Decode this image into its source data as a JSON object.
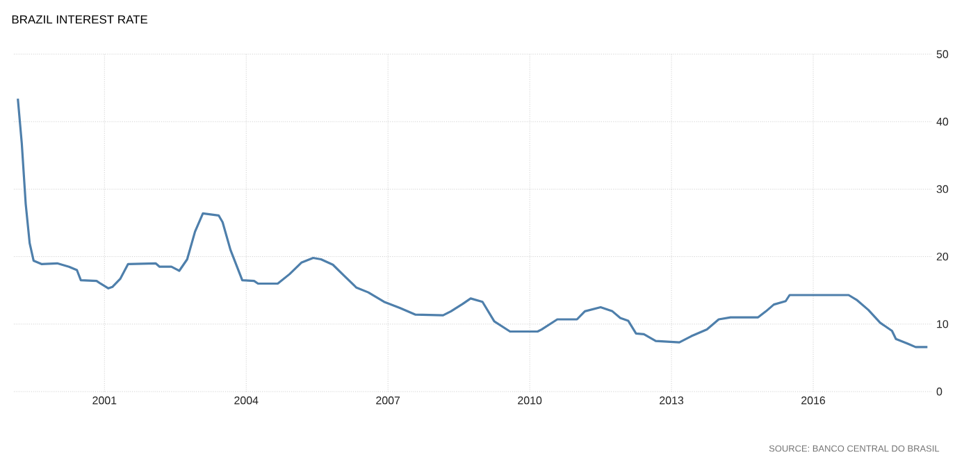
{
  "chart_data": {
    "type": "line",
    "title": "BRAZIL INTEREST RATE",
    "annotations": [
      "SOURCE: BANCO CENTRAL DO BRASIL"
    ],
    "x": [
      "1999-03",
      "1999-04",
      "1999-05",
      "1999-06",
      "1999-07",
      "1999-09",
      "2000-01",
      "2000-04",
      "2000-06",
      "2000-07",
      "2000-11",
      "2000-12",
      "2001-02",
      "2001-03",
      "2001-05",
      "2001-07",
      "2002-02",
      "2002-03",
      "2002-06",
      "2002-08",
      "2002-10",
      "2002-12",
      "2003-02",
      "2003-06",
      "2003-07",
      "2003-09",
      "2003-12",
      "2004-03",
      "2004-04",
      "2004-09",
      "2004-12",
      "2005-03",
      "2005-06",
      "2005-08",
      "2005-11",
      "2006-02",
      "2006-05",
      "2006-08",
      "2006-12",
      "2007-04",
      "2007-08",
      "2008-03",
      "2008-05",
      "2008-08",
      "2008-10",
      "2009-01",
      "2009-04",
      "2009-08",
      "2010-03",
      "2010-04",
      "2010-08",
      "2011-01",
      "2011-03",
      "2011-07",
      "2011-10",
      "2011-12",
      "2012-02",
      "2012-04",
      "2012-06",
      "2012-09",
      "2013-03",
      "2013-06",
      "2013-10",
      "2014-01",
      "2014-04",
      "2014-11",
      "2015-01",
      "2015-03",
      "2015-06",
      "2015-07",
      "2016-10",
      "2016-12",
      "2017-03",
      "2017-06",
      "2017-09",
      "2017-10",
      "2018-01",
      "2018-03",
      "2018-06"
    ],
    "series": [
      {
        "color": "#4e7fab",
        "values": [
          43.4,
          36.8,
          27.8,
          22.0,
          19.4,
          18.9,
          19.0,
          18.5,
          18.0,
          16.5,
          16.4,
          16.0,
          15.3,
          15.5,
          16.7,
          18.9,
          19.0,
          18.5,
          18.5,
          17.9,
          19.6,
          23.7,
          26.4,
          26.1,
          25.1,
          21.0,
          16.5,
          16.4,
          16.0,
          16.0,
          17.4,
          19.1,
          19.8,
          19.6,
          18.8,
          17.1,
          15.4,
          14.7,
          13.3,
          12.4,
          11.4,
          11.3,
          11.9,
          13.0,
          13.8,
          13.3,
          10.4,
          8.9,
          8.9,
          9.2,
          10.7,
          10.7,
          11.9,
          12.5,
          11.9,
          10.9,
          10.5,
          8.6,
          8.5,
          7.5,
          7.3,
          8.2,
          9.2,
          10.7,
          11.0,
          11.0,
          11.9,
          12.9,
          13.4,
          14.3,
          14.3,
          13.6,
          12.1,
          10.2,
          9.0,
          7.8,
          7.1,
          6.6,
          6.6
        ]
      }
    ],
    "xlim": [
      "1999-02",
      "2018-07"
    ],
    "xticks": [
      "2001",
      "2004",
      "2007",
      "2010",
      "2013",
      "2016"
    ],
    "ylim": [
      0,
      50
    ],
    "yticks": [
      0,
      10,
      20,
      30,
      40,
      50
    ],
    "grid": true,
    "marker": "none",
    "line_style": "solid"
  }
}
